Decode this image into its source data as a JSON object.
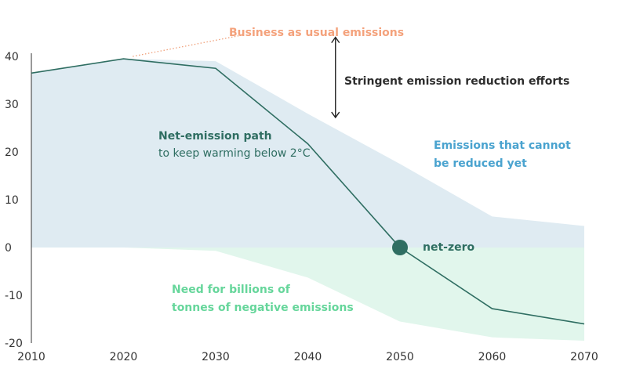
{
  "chart_data": {
    "type": "area",
    "xlim": [
      2010,
      2070
    ],
    "ylim": [
      -20,
      40
    ],
    "x_ticks": [
      "2010",
      "2020",
      "2030",
      "2040",
      "2050",
      "2060",
      "2070"
    ],
    "y_ticks": [
      "40",
      "30",
      "20",
      "10",
      "0",
      "-10",
      "-20"
    ],
    "grid": false,
    "series": [
      {
        "role": "upper-envelope",
        "x": [
          2010,
          2020,
          2030,
          2040,
          2050,
          2060,
          2070
        ],
        "y": [
          36.5,
          39.5,
          39,
          28,
          17.5,
          6.5,
          4.5
        ]
      },
      {
        "role": "lower-envelope",
        "x": [
          2010,
          2020,
          2030,
          2040,
          2050,
          2060,
          2070
        ],
        "y": [
          0,
          0,
          -0.7,
          -6.3,
          -15.5,
          -18.8,
          -19.5
        ]
      },
      {
        "name": "Net-emission path",
        "role": "path-line",
        "x": [
          2010,
          2020,
          2030,
          2040,
          2050,
          2060,
          2070
        ],
        "y": [
          36.5,
          39.5,
          37.5,
          21.7,
          0,
          -12.8,
          -16
        ]
      },
      {
        "role": "bau-dotted",
        "x": [
          2021,
          2033
        ],
        "y": [
          40,
          44.5
        ]
      }
    ],
    "net_zero_point": {
      "x": 2050,
      "y": 0,
      "label": "net-zero"
    },
    "arrow": {
      "x": 2043,
      "y_top": 44,
      "y_bottom": 27.2
    },
    "annotations": {
      "bau": "Business as usual emissions",
      "stringent": "Stringent emission reduction efforts",
      "net_path_title": "Net-emission path",
      "net_path_sub": "to keep warming below 2°C",
      "cannot_reduce_1": "Emissions that cannot",
      "cannot_reduce_2": "be reduced yet",
      "negative_1": "Need for billions of",
      "negative_2": "tonnes of negative emissions",
      "net_zero": "net-zero"
    },
    "colors": {
      "blue_area": "#dfebf2",
      "green_area": "#e1f6ec",
      "line": "#2f6e62",
      "bau_text": "#f4a27c",
      "bau_dots": "#f0a07a",
      "stringent_text": "#2d2d2d",
      "cannot_text": "#4aa3cf",
      "negative_text": "#66d69b",
      "path_text": "#2f6e62",
      "axis": "#333333"
    }
  }
}
